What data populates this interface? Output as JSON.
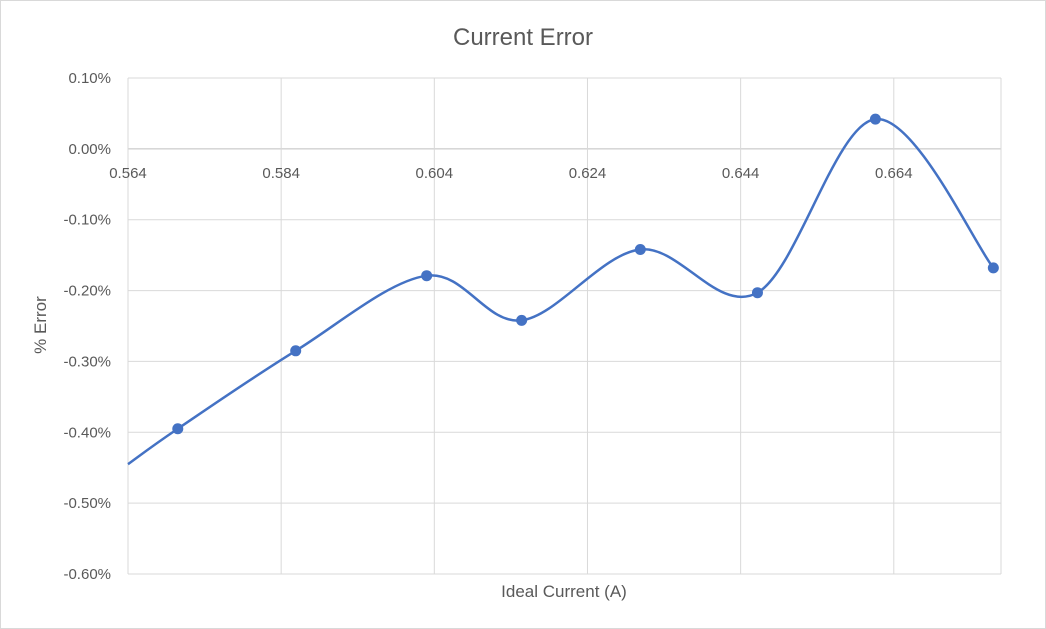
{
  "chart_data": {
    "type": "scatter",
    "title": "Current Error",
    "xlabel": "Ideal Current (A)",
    "ylabel": "% Error",
    "xlim": [
      0.564,
      0.678
    ],
    "ylim": [
      -0.6,
      0.1
    ],
    "x_ticks": [
      0.564,
      0.584,
      0.604,
      0.624,
      0.644,
      0.664
    ],
    "x_tick_labels": [
      "0.564",
      "0.584",
      "0.604",
      "0.624",
      "0.644",
      "0.664"
    ],
    "y_ticks": [
      0.1,
      0.0,
      -0.1,
      -0.2,
      -0.3,
      -0.4,
      -0.5,
      -0.6
    ],
    "y_tick_labels": [
      "0.10%",
      "0.00%",
      "-0.10%",
      "-0.20%",
      "-0.30%",
      "-0.40%",
      "-0.50%",
      "-0.60%"
    ],
    "grid": true,
    "smooth_line": true,
    "line_start": {
      "x": 0.564,
      "y": -0.445
    },
    "series": [
      {
        "x": [
          0.5705,
          0.5859,
          0.603,
          0.6154,
          0.6309,
          0.6462,
          0.6616,
          0.677
        ],
        "y": [
          -0.395,
          -0.285,
          -0.179,
          -0.242,
          -0.142,
          -0.203,
          0.042,
          -0.168
        ],
        "color": "#4472c4"
      }
    ]
  }
}
